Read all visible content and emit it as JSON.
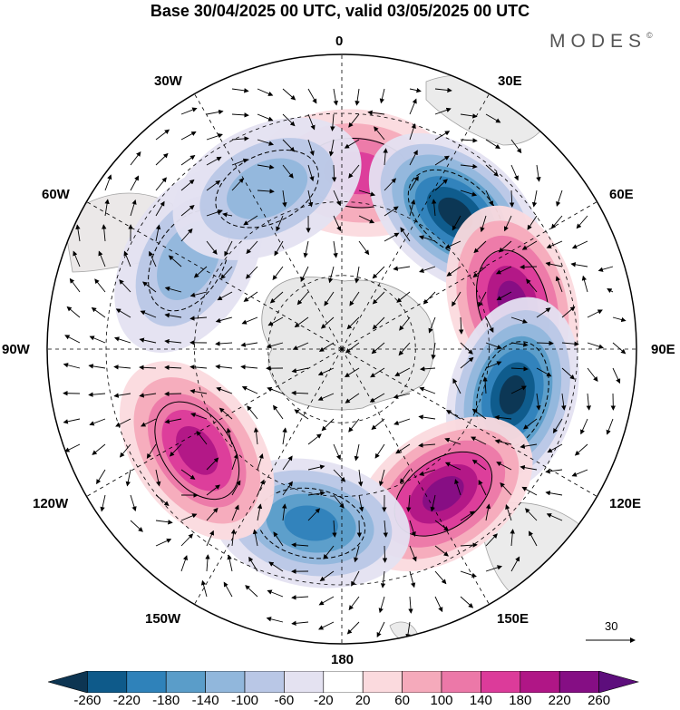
{
  "title": "Base 30/04/2025 00 UTC, valid 03/05/2025 00 UTC",
  "brand": "MODES",
  "brand_mark": "©",
  "map": {
    "projection": "south-polar-stereographic",
    "longitude_labels": {
      "lon_0": "0",
      "lon_30e": "30E",
      "lon_60e": "60E",
      "lon_90e": "90E",
      "lon_120e": "120E",
      "lon_150e": "150E",
      "lon_180": "180",
      "lon_150w": "150W",
      "lon_120w": "120W",
      "lon_90w": "90W",
      "lon_60w": "60W",
      "lon_30w": "30W"
    },
    "field": "anomaly (shaded) with wind vectors",
    "anomaly_centres": [
      {
        "sign": "positive",
        "longitude": 5,
        "value": 150
      },
      {
        "sign": "negative",
        "longitude": 40,
        "value": -240
      },
      {
        "sign": "positive",
        "longitude": 75,
        "value": 230
      },
      {
        "sign": "negative",
        "longitude": 105,
        "value": -270
      },
      {
        "sign": "positive",
        "longitude": 145,
        "value": 230
      },
      {
        "sign": "negative",
        "longitude": 190,
        "value": -190
      },
      {
        "sign": "positive",
        "longitude": 235,
        "value": 160
      },
      {
        "sign": "negative",
        "longitude": 300,
        "value": -110
      },
      {
        "sign": "negative",
        "longitude": 335,
        "value": -100
      }
    ]
  },
  "reference_vector": {
    "label": "30"
  },
  "colorbar": {
    "ticks": [
      "-260",
      "-220",
      "-180",
      "-140",
      "-100",
      "-60",
      "-20",
      "20",
      "60",
      "100",
      "140",
      "180",
      "220",
      "260"
    ],
    "colors": [
      "#0d3552",
      "#0e5a8a",
      "#2f82ba",
      "#5a9dc9",
      "#91b7dc",
      "#b9c7e6",
      "#e4e2f1",
      "#ffffff",
      "#fbdade",
      "#f5aabb",
      "#ec78a8",
      "#dc3b9a",
      "#b01686",
      "#850e84",
      "#5d0e7c"
    ],
    "extend": "both"
  }
}
